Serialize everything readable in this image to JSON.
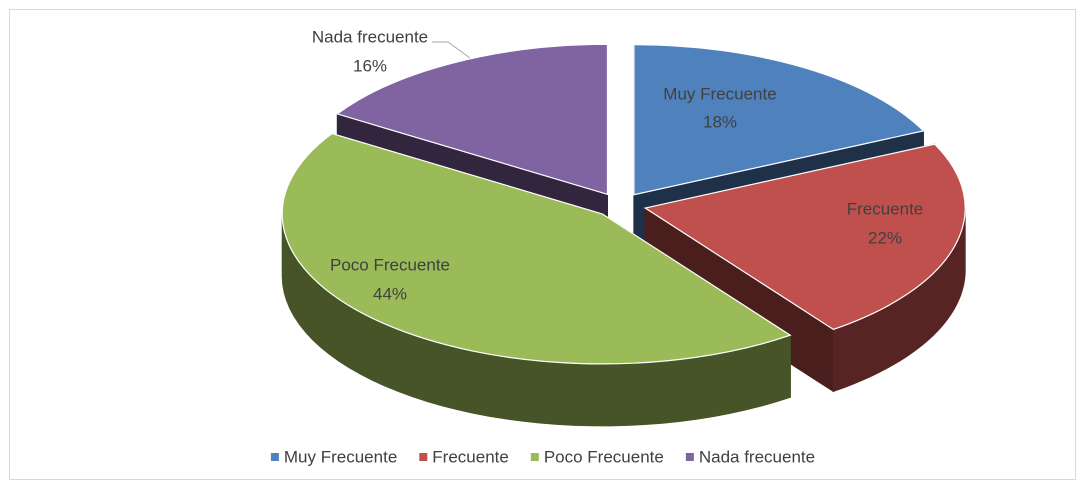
{
  "chart_data": {
    "type": "pie",
    "categories": [
      "Muy Frecuente",
      "Frecuente",
      "Poco Frecuente",
      "Nada frecuente"
    ],
    "values": [
      18,
      22,
      44,
      16
    ],
    "value_labels": [
      "18%",
      "22%",
      "44%",
      "16%"
    ],
    "colors": [
      "#4f81bd",
      "#c0504d",
      "#9bbb59",
      "#8064a2"
    ],
    "legend": "bottom"
  }
}
